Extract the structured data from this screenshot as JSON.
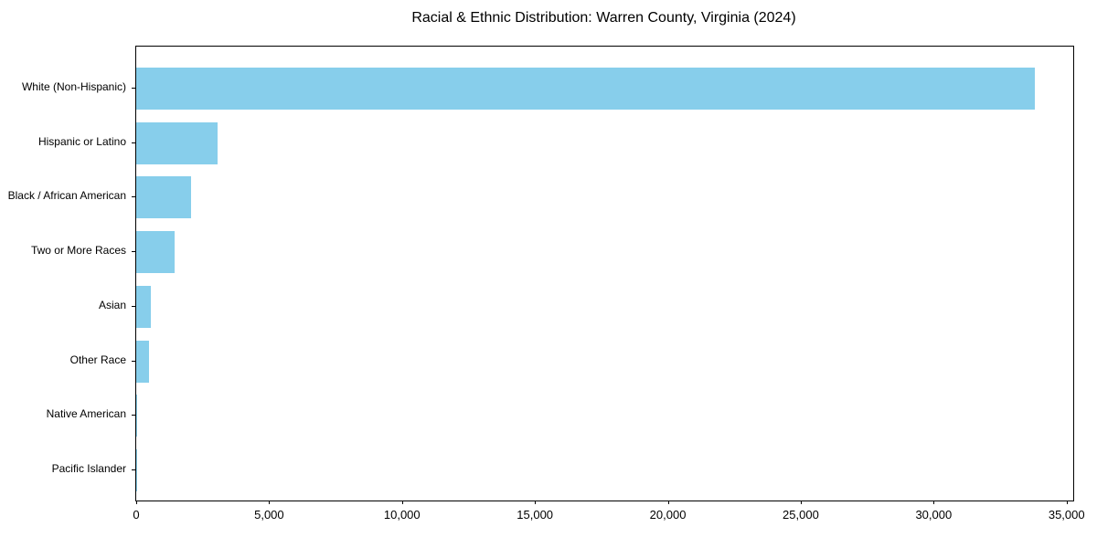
{
  "title": "Racial & Ethnic Distribution: Warren County, Virginia (2024)",
  "chart_data": {
    "type": "bar",
    "orientation": "horizontal",
    "title": "Racial & Ethnic Distribution: Warren County, Virginia (2024)",
    "xlabel": "",
    "ylabel": "",
    "categories": [
      "White (Non-Hispanic)",
      "Hispanic or Latino",
      "Black / African American",
      "Two or More Races",
      "Asian",
      "Other Race",
      "Native American",
      "Pacific Islander"
    ],
    "values": [
      33800,
      3060,
      2080,
      1460,
      550,
      490,
      30,
      10
    ],
    "xlim": [
      0,
      35250
    ],
    "x_ticks": [
      0,
      5000,
      10000,
      15000,
      20000,
      25000,
      30000,
      35000
    ],
    "x_tick_labels": [
      "0",
      "5,000",
      "10,000",
      "15,000",
      "20,000",
      "25,000",
      "30,000",
      "35,000"
    ],
    "bar_color": "#87CEEB",
    "axis_color": "#000000",
    "background_color": "#ffffff",
    "grid": false,
    "legend": null
  }
}
